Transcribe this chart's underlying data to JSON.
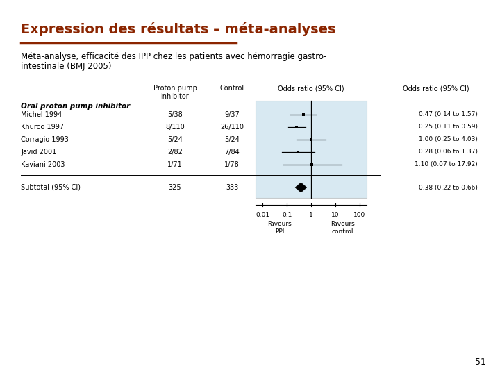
{
  "title": "Expression des résultats – méta-analyses",
  "title_color": "#8B2500",
  "subtitle_line1": "Méta-analyse, efficacité des IPP chez les patients avec hémorragie gastro-",
  "subtitle_line2": "intestinale (BMJ 2005)",
  "group_label": "Oral proton pump inhibitor",
  "studies": [
    {
      "name": "Michel 1994",
      "ppi": "5/38",
      "ctrl": "9/37",
      "or": 0.47,
      "lo": 0.14,
      "hi": 1.57,
      "text": "0.47 (0.14 to 1.57)"
    },
    {
      "name": "Khuroo 1997",
      "ppi": "8/110",
      "ctrl": "26/110",
      "or": 0.25,
      "lo": 0.11,
      "hi": 0.59,
      "text": "0.25 (0.11 to 0.59)"
    },
    {
      "name": "Corragio 1993",
      "ppi": "5/24",
      "ctrl": "5/24",
      "or": 1.0,
      "lo": 0.25,
      "hi": 4.03,
      "text": "1.00 (0.25 to 4.03)"
    },
    {
      "name": "Javid 2001",
      "ppi": "2/82",
      "ctrl": "7/84",
      "or": 0.28,
      "lo": 0.06,
      "hi": 1.37,
      "text": "0.28 (0.06 to 1.37)"
    },
    {
      "name": "Kaviani 2003",
      "ppi": "1/71",
      "ctrl": "1/78",
      "or": 1.1,
      "lo": 0.07,
      "hi": 17.92,
      "text": "1.10 (0.07 to 17.92)"
    }
  ],
  "subtotal": {
    "name": "Subtotal (95% CI)",
    "ppi": "325",
    "ctrl": "333",
    "or": 0.38,
    "lo": 0.22,
    "hi": 0.66,
    "text": "0.38 (0.22 to 0.66)"
  },
  "xaxis_ticks": [
    0.01,
    0.1,
    1,
    10,
    100
  ],
  "xaxis_labels": [
    "0.01",
    "0.1",
    "1",
    "10",
    "100"
  ],
  "favours_left": "Favours\nPPI",
  "favours_right": "Favours\ncontrol",
  "xlim_log": [
    -2.3,
    2.3
  ],
  "page_number": "51",
  "bg_color": "#ffffff",
  "box_color": "#b8d8e8",
  "line_color": "#000000",
  "forest_dot_color": "#000000",
  "diamond_color": "#000000",
  "title_underline_color": "#8B2500"
}
